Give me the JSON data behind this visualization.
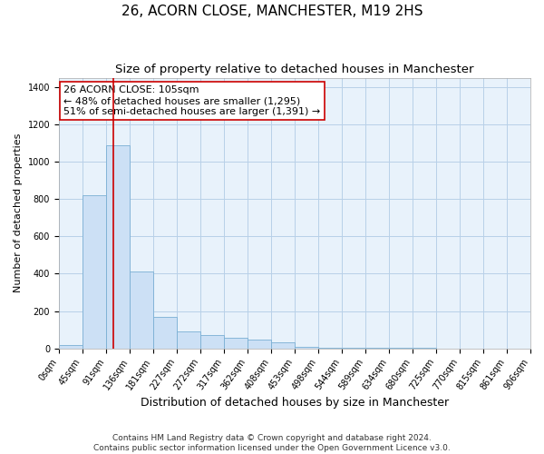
{
  "title": "26, ACORN CLOSE, MANCHESTER, M19 2HS",
  "subtitle": "Size of property relative to detached houses in Manchester",
  "xlabel": "Distribution of detached houses by size in Manchester",
  "ylabel": "Number of detached properties",
  "property_label": "26 ACORN CLOSE: 105sqm",
  "annotation_line1": "← 48% of detached houses are smaller (1,295)",
  "annotation_line2": "51% of semi-detached houses are larger (1,391) →",
  "footer_line1": "Contains HM Land Registry data © Crown copyright and database right 2024.",
  "footer_line2": "Contains public sector information licensed under the Open Government Licence v3.0.",
  "bin_edges": [
    0,
    45,
    91,
    136,
    181,
    227,
    272,
    317,
    362,
    408,
    453,
    498,
    544,
    589,
    634,
    680,
    725,
    770,
    815,
    861,
    906
  ],
  "bar_heights": [
    20,
    820,
    1090,
    410,
    170,
    90,
    70,
    55,
    45,
    30,
    10,
    5,
    2,
    2,
    2,
    1,
    0,
    0,
    0,
    0
  ],
  "bar_color": "#cce0f5",
  "bar_edge_color": "#7aafd4",
  "vline_x": 105,
  "vline_color": "#cc0000",
  "ylim": [
    0,
    1450
  ],
  "yticks": [
    0,
    200,
    400,
    600,
    800,
    1000,
    1200,
    1400
  ],
  "annotation_box_color": "#cc0000",
  "grid_color": "#b8d0e8",
  "bg_color": "#e8f2fb",
  "title_fontsize": 11,
  "subtitle_fontsize": 9.5,
  "xlabel_fontsize": 9,
  "ylabel_fontsize": 8,
  "tick_fontsize": 7,
  "annotation_fontsize": 8,
  "footer_fontsize": 6.5
}
